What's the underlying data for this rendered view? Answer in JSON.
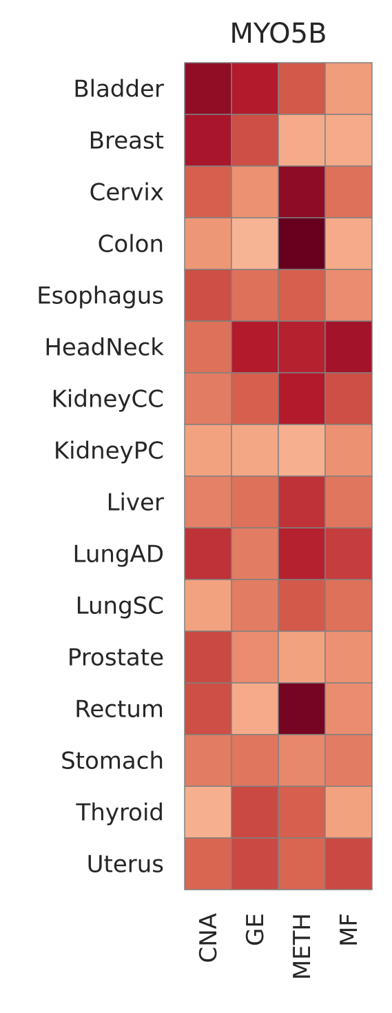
{
  "chart_data": {
    "type": "heatmap",
    "title": "MYO5B",
    "rows": [
      "Bladder",
      "Breast",
      "Cervix",
      "Colon",
      "Esophagus",
      "HeadNeck",
      "KidneyCC",
      "KidneyPC",
      "Liver",
      "LungAD",
      "LungSC",
      "Prostate",
      "Rectum",
      "Stomach",
      "Thyroid",
      "Uterus"
    ],
    "columns": [
      "CNA",
      "GE",
      "METH",
      "MF"
    ],
    "values": [
      [
        0.86,
        0.74,
        0.52,
        0.28
      ],
      [
        0.78,
        0.56,
        0.22,
        0.22
      ],
      [
        0.5,
        0.32,
        0.87,
        0.44
      ],
      [
        0.3,
        0.18,
        1.0,
        0.22
      ],
      [
        0.56,
        0.44,
        0.5,
        0.34
      ],
      [
        0.44,
        0.74,
        0.72,
        0.8
      ],
      [
        0.4,
        0.5,
        0.74,
        0.56
      ],
      [
        0.26,
        0.24,
        0.2,
        0.32
      ],
      [
        0.38,
        0.44,
        0.66,
        0.42
      ],
      [
        0.66,
        0.4,
        0.72,
        0.62
      ],
      [
        0.26,
        0.4,
        0.52,
        0.44
      ],
      [
        0.58,
        0.34,
        0.26,
        0.32
      ],
      [
        0.56,
        0.22,
        0.95,
        0.34
      ],
      [
        0.4,
        0.42,
        0.36,
        0.4
      ],
      [
        0.2,
        0.58,
        0.5,
        0.26
      ],
      [
        0.48,
        0.58,
        0.48,
        0.58
      ]
    ],
    "colorscale": [
      "#fddbc7",
      "#f4a582",
      "#d6604d",
      "#b2182b",
      "#67001f"
    ],
    "cell_border_color": "#808080",
    "colorbar": false
  }
}
